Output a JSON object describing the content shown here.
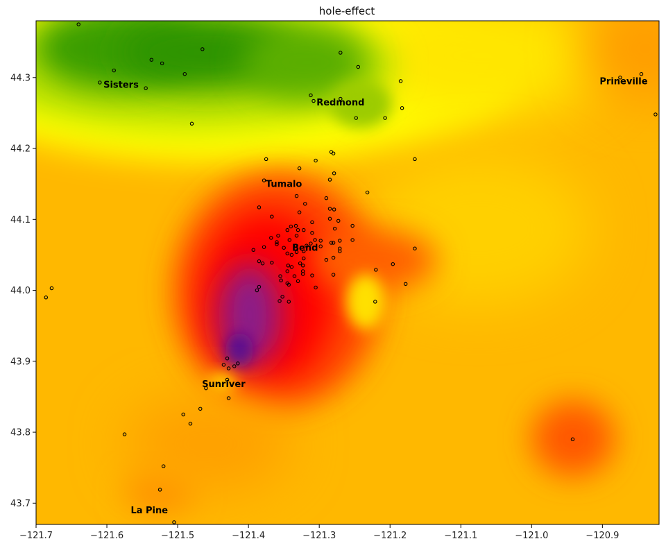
{
  "chart_data": {
    "type": "heatmap",
    "title": "hole-effect",
    "xlim": [
      -121.7,
      -120.82
    ],
    "ylim": [
      43.67,
      44.38
    ],
    "x_ticks": [
      -121.7,
      -121.6,
      -121.5,
      -121.4,
      -121.3,
      -121.2,
      -121.1,
      -121.0,
      -120.9
    ],
    "x_tick_labels": [
      "−121.7",
      "−121.6",
      "−121.5",
      "−121.4",
      "−121.3",
      "−121.2",
      "−121.1",
      "−121.0",
      "−120.9"
    ],
    "y_ticks": [
      43.7,
      43.8,
      43.9,
      44.0,
      44.1,
      44.2,
      44.3
    ],
    "y_tick_labels": [
      "43.7",
      "43.8",
      "43.9",
      "44.0",
      "44.1",
      "44.2",
      "44.3"
    ],
    "colormap": [
      "#4b0082",
      "#ff0000",
      "#ff8c00",
      "#ffff00",
      "#2e9a00"
    ],
    "towns": [
      {
        "name": "Sisters",
        "lon": -121.58,
        "lat": 44.29
      },
      {
        "name": "Redmond",
        "lon": -121.27,
        "lat": 44.265
      },
      {
        "name": "Prineville",
        "lon": -120.87,
        "lat": 44.295
      },
      {
        "name": "Tumalo",
        "lon": -121.35,
        "lat": 44.15
      },
      {
        "name": "Bend",
        "lon": -121.32,
        "lat": 44.06
      },
      {
        "name": "Sunriver",
        "lon": -121.435,
        "lat": 43.868
      },
      {
        "name": "La Pine",
        "lon": -121.54,
        "lat": 43.69
      }
    ],
    "stations": [
      [
        -121.64,
        44.375
      ],
      [
        -121.59,
        44.31
      ],
      [
        -121.61,
        44.293
      ],
      [
        -121.537,
        44.325
      ],
      [
        -121.522,
        44.32
      ],
      [
        -121.545,
        44.285
      ],
      [
        -121.465,
        44.34
      ],
      [
        -121.49,
        44.305
      ],
      [
        -121.48,
        44.235
      ],
      [
        -121.27,
        44.335
      ],
      [
        -121.245,
        44.315
      ],
      [
        -121.312,
        44.275
      ],
      [
        -121.308,
        44.267
      ],
      [
        -121.27,
        44.27
      ],
      [
        -121.185,
        44.295
      ],
      [
        -121.183,
        44.257
      ],
      [
        -121.207,
        44.243
      ],
      [
        -121.248,
        44.243
      ],
      [
        -120.845,
        44.305
      ],
      [
        -120.875,
        44.3
      ],
      [
        -120.825,
        44.248
      ],
      [
        -121.375,
        44.185
      ],
      [
        -121.305,
        44.183
      ],
      [
        -121.283,
        44.195
      ],
      [
        -121.28,
        44.193
      ],
      [
        -121.165,
        44.185
      ],
      [
        -121.328,
        44.172
      ],
      [
        -121.279,
        44.165
      ],
      [
        -121.285,
        44.156
      ],
      [
        -121.378,
        44.155
      ],
      [
        -121.232,
        44.138
      ],
      [
        -121.332,
        44.133
      ],
      [
        -121.29,
        44.13
      ],
      [
        -121.385,
        44.117
      ],
      [
        -121.32,
        44.122
      ],
      [
        -121.285,
        44.115
      ],
      [
        -121.279,
        44.114
      ],
      [
        -121.328,
        44.11
      ],
      [
        -121.367,
        44.104
      ],
      [
        -121.285,
        44.101
      ],
      [
        -121.273,
        44.098
      ],
      [
        -121.31,
        44.096
      ],
      [
        -121.34,
        44.09
      ],
      [
        -121.333,
        44.091
      ],
      [
        -121.278,
        44.087
      ],
      [
        -121.345,
        44.085
      ],
      [
        -121.33,
        44.085
      ],
      [
        -121.322,
        44.085
      ],
      [
        -121.31,
        44.081
      ],
      [
        -121.253,
        44.091
      ],
      [
        -121.358,
        44.077
      ],
      [
        -121.368,
        44.074
      ],
      [
        -121.332,
        44.077
      ],
      [
        -121.342,
        44.071
      ],
      [
        -121.306,
        44.071
      ],
      [
        -121.298,
        44.07
      ],
      [
        -121.312,
        44.066
      ],
      [
        -121.36,
        44.068
      ],
      [
        -121.271,
        44.07
      ],
      [
        -121.253,
        44.071
      ],
      [
        -121.35,
        44.06
      ],
      [
        -121.378,
        44.061
      ],
      [
        -121.333,
        44.063
      ],
      [
        -121.318,
        44.063
      ],
      [
        -121.298,
        44.062
      ],
      [
        -121.283,
        44.067
      ],
      [
        -121.28,
        44.067
      ],
      [
        -121.271,
        44.059
      ],
      [
        -121.36,
        44.065
      ],
      [
        -121.345,
        44.052
      ],
      [
        -121.339,
        44.05
      ],
      [
        -121.332,
        44.054
      ],
      [
        -121.322,
        44.055
      ],
      [
        -121.271,
        44.055
      ],
      [
        -121.393,
        44.057
      ],
      [
        -121.367,
        44.039
      ],
      [
        -121.322,
        44.045
      ],
      [
        -121.29,
        44.043
      ],
      [
        -121.28,
        44.046
      ],
      [
        -121.385,
        44.041
      ],
      [
        -121.38,
        44.038
      ],
      [
        -121.344,
        44.035
      ],
      [
        -121.339,
        44.033
      ],
      [
        -121.327,
        44.038
      ],
      [
        -121.323,
        44.035
      ],
      [
        -121.345,
        44.027
      ],
      [
        -121.323,
        44.027
      ],
      [
        -121.323,
        44.023
      ],
      [
        -121.355,
        44.02
      ],
      [
        -121.335,
        44.02
      ],
      [
        -121.31,
        44.021
      ],
      [
        -121.28,
        44.022
      ],
      [
        -121.354,
        44.014
      ],
      [
        -121.345,
        44.01
      ],
      [
        -121.343,
        44.008
      ],
      [
        -121.33,
        44.013
      ],
      [
        -121.305,
        44.004
      ],
      [
        -121.385,
        44.005
      ],
      [
        -121.388,
        44.0
      ],
      [
        -121.22,
        44.029
      ],
      [
        -121.196,
        44.037
      ],
      [
        -121.165,
        44.059
      ],
      [
        -121.178,
        44.009
      ],
      [
        -121.221,
        43.984
      ],
      [
        -121.356,
        43.985
      ],
      [
        -121.352,
        43.991
      ],
      [
        -121.343,
        43.984
      ],
      [
        -121.686,
        43.99
      ],
      [
        -121.678,
        44.003
      ],
      [
        -121.43,
        43.904
      ],
      [
        -121.435,
        43.895
      ],
      [
        -121.428,
        43.89
      ],
      [
        -121.42,
        43.893
      ],
      [
        -121.415,
        43.897
      ],
      [
        -121.43,
        43.874
      ],
      [
        -121.428,
        43.848
      ],
      [
        -121.46,
        43.862
      ],
      [
        -121.468,
        43.833
      ],
      [
        -121.492,
        43.825
      ],
      [
        -121.482,
        43.812
      ],
      [
        -121.575,
        43.797
      ],
      [
        -120.942,
        43.79
      ],
      [
        -121.52,
        43.752
      ],
      [
        -121.525,
        43.719
      ],
      [
        -121.505,
        43.673
      ]
    ]
  }
}
